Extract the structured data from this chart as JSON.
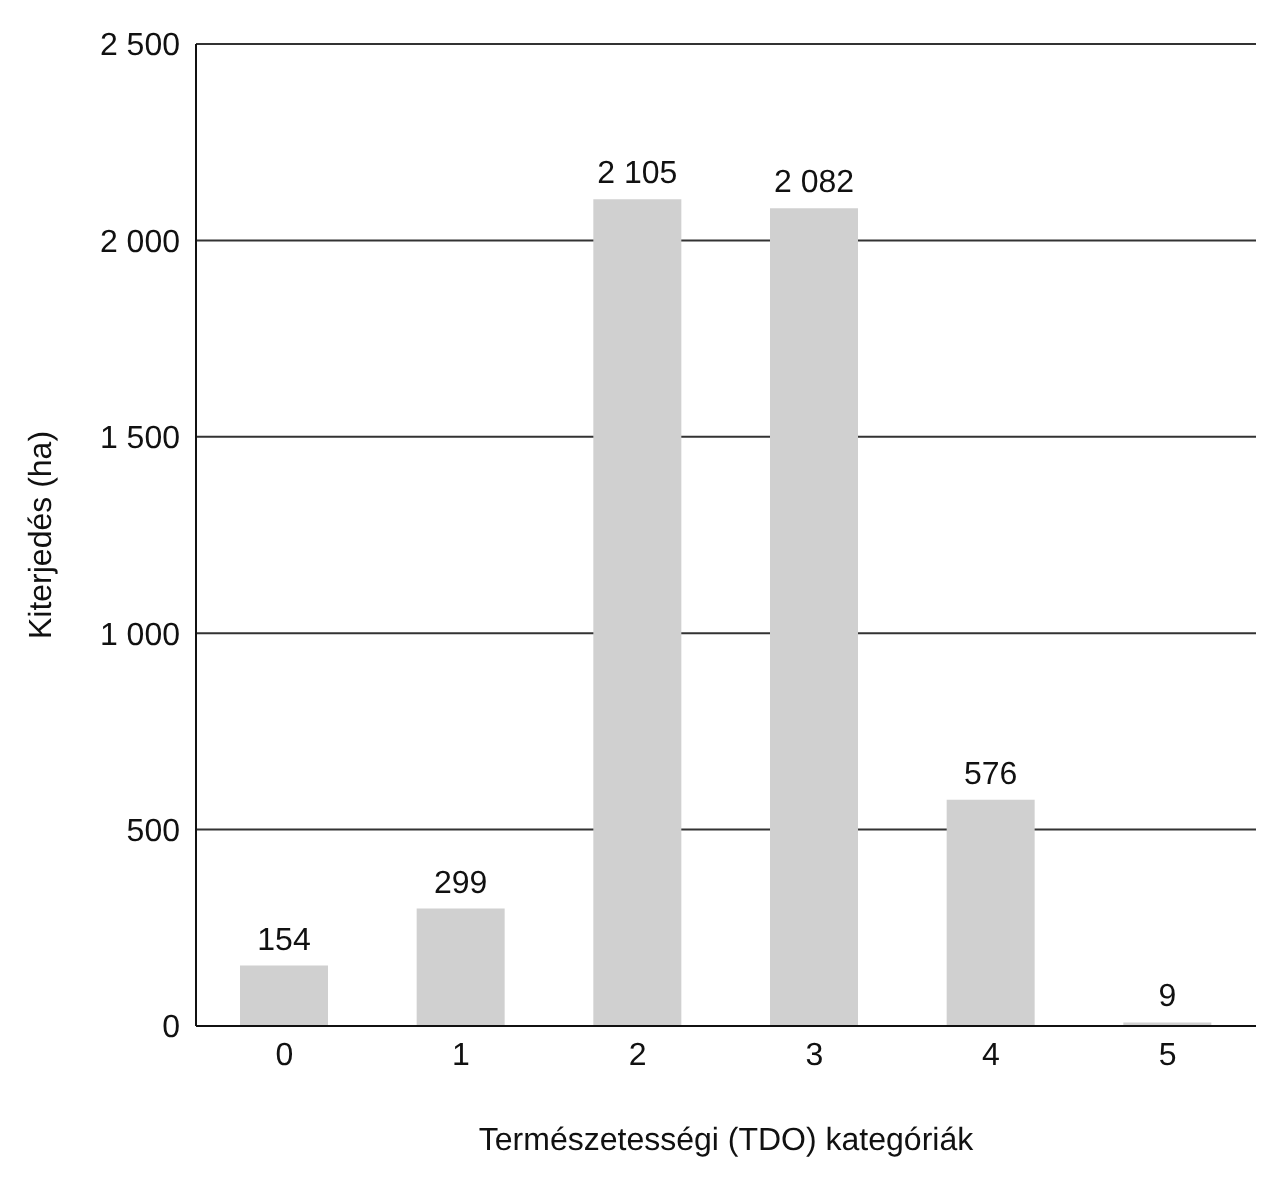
{
  "chart_data": {
    "type": "bar",
    "xlabel": "Természetességi (TDO) kategóriák",
    "ylabel": "Kiterjedés (ha)",
    "categories": [
      "0",
      "1",
      "2",
      "3",
      "4",
      "5"
    ],
    "values": [
      154,
      299,
      2105,
      2082,
      576,
      9
    ],
    "value_labels": [
      "154",
      "299",
      "2 105",
      "2 082",
      "576",
      "9"
    ],
    "color": "#d0d0d0",
    "ylim": [
      0,
      2500
    ],
    "yticks": [
      {
        "value": 0,
        "label": "0"
      },
      {
        "value": 500,
        "label": "500"
      },
      {
        "value": 1000,
        "label": "1 000"
      },
      {
        "value": 1500,
        "label": "1 500"
      },
      {
        "value": 2000,
        "label": "2 000"
      },
      {
        "value": 2500,
        "label": "2 500"
      }
    ],
    "grid": "y",
    "legend": false
  }
}
